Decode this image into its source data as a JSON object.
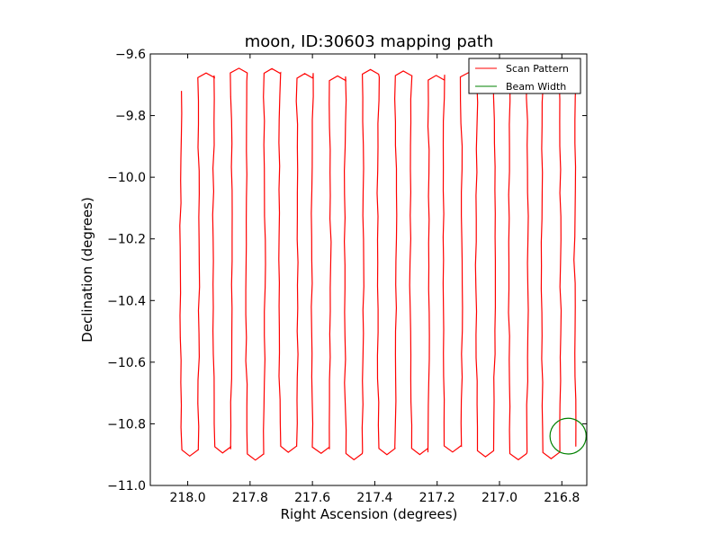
{
  "chart_data": {
    "type": "line",
    "title": "moon, ID:30603 mapping path",
    "xlabel": "Right Ascension (degrees)",
    "ylabel": "Declination (degrees)",
    "xlim": [
      218.12,
      216.72
    ],
    "ylim": [
      -11.0,
      -9.6
    ],
    "xticks": [
      218.0,
      217.8,
      217.6,
      217.4,
      217.2,
      217.0,
      216.8
    ],
    "xtick_labels": [
      "218.0",
      "217.8",
      "217.6",
      "217.4",
      "217.2",
      "217.0",
      "216.8"
    ],
    "yticks": [
      -11.0,
      -10.8,
      -10.6,
      -10.4,
      -10.2,
      -10.0,
      -9.8,
      -9.6
    ],
    "ytick_labels": [
      "−11.0",
      "−10.8",
      "−10.6",
      "−10.4",
      "−10.2",
      "−10.0",
      "−9.8",
      "−9.6"
    ],
    "grid": false,
    "legend_position": "top-right",
    "series": [
      {
        "name": "Scan Pattern",
        "color": "#ff0000",
        "scan": {
          "ra_start": 218.02,
          "ra_step": -0.0527,
          "legs": 25,
          "dec_top": -9.66,
          "dec_bottom": -10.87,
          "first_leg_top": -9.72
        }
      },
      {
        "name": "Beam Width",
        "color": "#008000",
        "circle": {
          "ra_center": 216.78,
          "dec_center": -10.84,
          "radius_deg": 0.058
        }
      }
    ]
  }
}
